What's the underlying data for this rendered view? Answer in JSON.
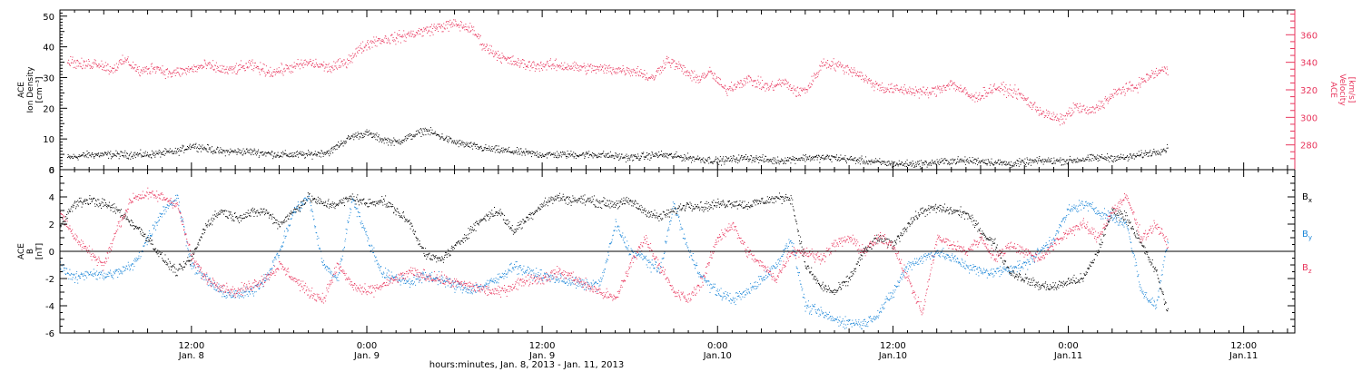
{
  "colors": {
    "black": "#000000",
    "pink": "#e8365d",
    "blue": "#1b86d8"
  },
  "xaxis": {
    "title": "hours:minutes, Jan.  8, 2013 - Jan. 11, 2013",
    "ticks": [
      {
        "hours": 12,
        "time": "12:00",
        "day": "Jan. 8"
      },
      {
        "hours": 24,
        "time": "0:00",
        "day": "Jan. 9"
      },
      {
        "hours": 36,
        "time": "12:00",
        "day": "Jan. 9"
      },
      {
        "hours": 48,
        "time": "0:00",
        "day": "Jan.10"
      },
      {
        "hours": 60,
        "time": "12:00",
        "day": "Jan.10"
      },
      {
        "hours": 72,
        "time": "0:00",
        "day": "Jan.11"
      },
      {
        "hours": 84,
        "time": "12:00",
        "day": "Jan.11"
      }
    ],
    "start_hours": 3.0,
    "end_hours": 87.5
  },
  "panel_top": {
    "left_label": [
      "ACE",
      "Ion Density",
      "[cm⁻³]"
    ],
    "right_label": [
      "ACE",
      "Velocity",
      "[km/s]"
    ]
  },
  "panel_bottom": {
    "left_label": [
      "ACE",
      "B",
      "[nT]"
    ],
    "legend": [
      {
        "main": "B",
        "sub": "x",
        "color": "#000000"
      },
      {
        "main": "B",
        "sub": "y",
        "color": "#1b86d8"
      },
      {
        "main": "B",
        "sub": "z",
        "color": "#e8365d"
      }
    ]
  },
  "chart_data": [
    {
      "type": "scatter",
      "title": "",
      "xlabel": "hours:minutes, Jan.  8, 2013 - Jan. 11, 2013",
      "ylabel": "ACE Ion Density [cm⁻³]",
      "y2label": "ACE Velocity [km/s]",
      "xlim_hours": [
        3.0,
        87.5
      ],
      "ylim": [
        0,
        52
      ],
      "y2lim": [
        262,
        378
      ],
      "yticks": [
        0,
        10,
        20,
        30,
        40,
        50
      ],
      "y2ticks": [
        280,
        300,
        320,
        340,
        360
      ],
      "series": [
        {
          "axis": "left",
          "color": "#000000",
          "x": [
            3.5,
            5,
            7,
            9,
            11,
            12,
            13,
            14,
            16,
            18,
            20,
            21.5,
            22,
            23,
            24,
            25,
            26,
            27,
            28,
            29,
            30,
            31,
            32,
            34,
            36,
            38,
            40,
            42,
            44,
            46,
            48,
            50,
            52,
            54,
            56,
            58,
            60,
            62,
            64,
            66,
            68,
            70,
            72,
            74,
            76,
            77,
            78,
            78.8
          ],
          "y": [
            4,
            5,
            5,
            5,
            6,
            8,
            7,
            6,
            6,
            5,
            5,
            6,
            8,
            11,
            12,
            10,
            9,
            11,
            13,
            11,
            9,
            8,
            7,
            6,
            5,
            5,
            5,
            4,
            5,
            4,
            3,
            4,
            3,
            4,
            4,
            3,
            2,
            2,
            3,
            3,
            2,
            3,
            3,
            4,
            4,
            5,
            6,
            7
          ],
          "spread": 1.2
        },
        {
          "axis": "right",
          "color": "#e8365d",
          "x": [
            3.5,
            4.5,
            5.5,
            6.5,
            7.5,
            8.5,
            9.5,
            10.5,
            11.5,
            13,
            14.5,
            16,
            17.5,
            19,
            20,
            21.5,
            22.5,
            23.5,
            24.5,
            26,
            27.5,
            29,
            30,
            31,
            31.5,
            32,
            33.5,
            35,
            37,
            39,
            41,
            42.5,
            43.5,
            44.5,
            45.5,
            46.5,
            47.5,
            48.5,
            50,
            51.5,
            52.5,
            53.5,
            54.2,
            55.2,
            56.2,
            57.5,
            58.5,
            59.5,
            61,
            62.5,
            64,
            65.5,
            67,
            68.5,
            69.5,
            70.5,
            71.5,
            72.5,
            73.5,
            74.5,
            75.5,
            76.5,
            77.5,
            78.5,
            78.8
          ],
          "y": [
            342,
            338,
            340,
            335,
            342,
            333,
            337,
            332,
            334,
            338,
            334,
            338,
            333,
            337,
            340,
            336,
            340,
            350,
            356,
            358,
            362,
            366,
            368,
            365,
            360,
            352,
            342,
            338,
            338,
            336,
            335,
            334,
            328,
            342,
            336,
            328,
            333,
            320,
            328,
            322,
            326,
            318,
            322,
            340,
            338,
            333,
            325,
            321,
            320,
            318,
            325,
            314,
            322,
            318,
            309,
            302,
            298,
            308,
            304,
            312,
            320,
            322,
            330,
            335,
            333
          ],
          "spread": 4
        }
      ]
    },
    {
      "type": "scatter",
      "title": "",
      "xlabel": "hours:minutes, Jan.  8, 2013 - Jan. 11, 2013",
      "ylabel": "ACE B [nT]",
      "xlim_hours": [
        3.0,
        87.5
      ],
      "ylim": [
        -6,
        6
      ],
      "yticks": [
        -6,
        -4,
        -2,
        0,
        2,
        4,
        6
      ],
      "zero_line": true,
      "series": [
        {
          "name": "Bx",
          "color": "#000000",
          "x": [
            3,
            4,
            5,
            6,
            7,
            8,
            9,
            10,
            11,
            12,
            13,
            14,
            15,
            16,
            17,
            18,
            19,
            20,
            21,
            22,
            23,
            24,
            25,
            26,
            27,
            28,
            29,
            30,
            31,
            32,
            33,
            34,
            35,
            36,
            37,
            38,
            39,
            40,
            41,
            42,
            43,
            44,
            45,
            46,
            47,
            48,
            49,
            50,
            51,
            52,
            53,
            54,
            55,
            56,
            57,
            58,
            59,
            60,
            61,
            62,
            63,
            64,
            65,
            66,
            67,
            68,
            69,
            70,
            71,
            72,
            73,
            74,
            75,
            76,
            77,
            78,
            78.8
          ],
          "y": [
            2,
            3.5,
            3.8,
            3.5,
            3,
            2,
            1,
            -0.5,
            -1.5,
            -0.5,
            2,
            3,
            2.5,
            2.8,
            3,
            2,
            3,
            4,
            3.5,
            3.5,
            4,
            3.5,
            3.8,
            3,
            2,
            -0.3,
            -0.6,
            0.3,
            1.5,
            2.5,
            3,
            1.5,
            2.5,
            3.5,
            4,
            3.8,
            3.8,
            3.6,
            3.5,
            3.7,
            3,
            2.5,
            3,
            3.5,
            3.3,
            3.5,
            3.6,
            3.4,
            3.7,
            3.9,
            4,
            -1,
            -2.5,
            -3,
            -2,
            0,
            1,
            0.5,
            2,
            3,
            3.2,
            3,
            2.8,
            1.5,
            0.5,
            -1.5,
            -2,
            -2.5,
            -2.6,
            -2.2,
            -2,
            0,
            3,
            2.5,
            0.5,
            -1.5,
            -4.5
          ],
          "spread": 0.35
        },
        {
          "name": "By",
          "color": "#1b86d8",
          "x": [
            3,
            4,
            5,
            6,
            7,
            8,
            9,
            10,
            11,
            12,
            13,
            14,
            15,
            16,
            17,
            18,
            19,
            20,
            21,
            22,
            23,
            24,
            25,
            26,
            27,
            28,
            29,
            30,
            31,
            32,
            33,
            34,
            35,
            36,
            37,
            38,
            39,
            40,
            41,
            42,
            43,
            44,
            45,
            46,
            47,
            48,
            49,
            50,
            51,
            52,
            53,
            54,
            55,
            56,
            57,
            58,
            59,
            60,
            61,
            62,
            63,
            64,
            65,
            66,
            67,
            68,
            69,
            70,
            71,
            72,
            73,
            74,
            75,
            76,
            77,
            78,
            78.8
          ],
          "y": [
            -1,
            -2,
            -1.5,
            -1.8,
            -1.5,
            -1,
            1,
            3,
            4,
            -1,
            -2,
            -3,
            -3.2,
            -3,
            -2,
            0,
            3,
            4,
            -1,
            -2,
            4,
            1,
            -1.5,
            -2,
            -2.2,
            -1.8,
            -2,
            -2.5,
            -2.8,
            -2.5,
            -2,
            -1,
            -1.5,
            -1.8,
            -2,
            -2.2,
            -2.5,
            -2.3,
            2,
            0,
            -0.5,
            -1.5,
            3.5,
            0,
            -2,
            -3,
            -3.5,
            -3,
            -2,
            -1,
            1,
            -4,
            -4.5,
            -5,
            -5.2,
            -5.3,
            -4.5,
            -3,
            -1,
            -0.5,
            0,
            -0.5,
            -1,
            -1.5,
            -1.5,
            -1.2,
            -1,
            0,
            1,
            3,
            3.5,
            3,
            2.5,
            2,
            -3,
            -4,
            1
          ],
          "spread": 0.4
        },
        {
          "name": "Bz",
          "color": "#e8365d",
          "x": [
            3,
            4,
            5,
            6,
            7,
            8,
            9,
            10,
            11,
            12,
            13,
            14,
            15,
            16,
            17,
            18,
            19,
            20,
            21,
            22,
            23,
            24,
            25,
            26,
            27,
            28,
            29,
            30,
            31,
            32,
            33,
            34,
            35,
            36,
            37,
            38,
            39,
            40,
            41,
            42,
            43,
            44,
            45,
            46,
            47,
            48,
            49,
            50,
            51,
            52,
            53,
            54,
            55,
            56,
            57,
            58,
            59,
            60,
            61,
            62,
            63,
            64,
            65,
            66,
            67,
            68,
            69,
            70,
            71,
            72,
            73,
            74,
            75,
            76,
            77,
            78,
            78.8
          ],
          "y": [
            3,
            1,
            0,
            -1,
            2,
            4,
            4.2,
            4,
            3.5,
            -0.5,
            -2,
            -2.5,
            -3,
            -2.5,
            -2,
            -1,
            -2,
            -3,
            -3.5,
            -1,
            -2.5,
            -3,
            -2.5,
            -2,
            -1.5,
            -1.8,
            -2,
            -2.3,
            -2.5,
            -2.8,
            -3,
            -2.5,
            -2,
            -2,
            -1.5,
            -1.8,
            -2.5,
            -3,
            -3.5,
            -1,
            1,
            -1,
            -3,
            -3.5,
            -2,
            1,
            2,
            0,
            -1,
            -2,
            0,
            0,
            -0.5,
            0.5,
            1,
            0,
            1,
            0.5,
            -2,
            -4.5,
            1,
            0.5,
            0,
            1,
            -0.5,
            0.5,
            0,
            -0.5,
            0.5,
            1.5,
            2,
            1,
            3,
            4,
            1,
            2,
            0.5
          ],
          "spread": 0.4
        }
      ]
    }
  ]
}
